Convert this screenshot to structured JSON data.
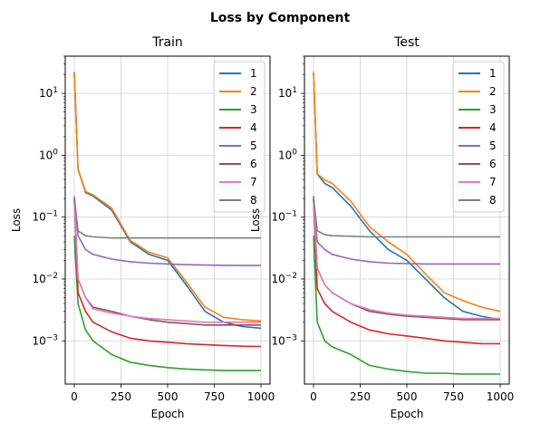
{
  "chart_data": {
    "type": "line",
    "title": "Loss by Component",
    "scale": "log",
    "grid": true,
    "legend_placement": "top-right",
    "colors": {
      "1": "#1f77b4",
      "2": "#ff7f0e",
      "3": "#2ca02c",
      "4": "#d62728",
      "5": "#9467bd",
      "6": "#8c564b",
      "7": "#e377c2",
      "8": "#7f7f7f"
    },
    "panels": [
      {
        "title": "Train",
        "xlabel": "Epoch",
        "ylabel": "Loss",
        "xlim": [
          0,
          1000
        ],
        "ylim": [
          0.0002,
          40
        ],
        "xticks": [
          "0",
          "250",
          "500",
          "750",
          "1000"
        ],
        "yticks": [
          "10-3",
          "10-2",
          "10-1",
          "100",
          "101"
        ],
        "x": [
          0,
          20,
          60,
          100,
          200,
          300,
          400,
          500,
          600,
          700,
          800,
          900,
          1000
        ],
        "series": [
          {
            "name": "1",
            "values": [
              22,
              0.6,
              0.25,
              0.22,
              0.13,
              0.04,
              0.025,
              0.02,
              0.008,
              0.003,
              0.002,
              0.0017,
              0.0016
            ]
          },
          {
            "name": "2",
            "values": [
              22,
              0.6,
              0.26,
              0.23,
              0.14,
              0.042,
              0.027,
              0.022,
              0.009,
              0.0035,
              0.0024,
              0.0022,
              0.0021
            ]
          },
          {
            "name": "3",
            "values": [
              0.05,
              0.004,
              0.0015,
              0.001,
              0.0006,
              0.00045,
              0.0004,
              0.00037,
              0.00035,
              0.00034,
              0.00033,
              0.00033,
              0.00033
            ]
          },
          {
            "name": "4",
            "values": [
              0.2,
              0.006,
              0.003,
              0.002,
              0.0014,
              0.0011,
              0.001,
              0.00095,
              0.0009,
              0.00087,
              0.00084,
              0.00082,
              0.00081
            ]
          },
          {
            "name": "5",
            "values": [
              0.22,
              0.05,
              0.03,
              0.025,
              0.021,
              0.019,
              0.018,
              0.0175,
              0.017,
              0.0168,
              0.0166,
              0.0165,
              0.0165
            ]
          },
          {
            "name": "6",
            "values": [
              0.2,
              0.01,
              0.005,
              0.0035,
              0.003,
              0.0025,
              0.0022,
              0.002,
              0.0019,
              0.0018,
              0.0018,
              0.0018,
              0.0018
            ]
          },
          {
            "name": "7",
            "values": [
              0.2,
              0.01,
              0.005,
              0.0033,
              0.0028,
              0.0025,
              0.0023,
              0.0022,
              0.0021,
              0.002,
              0.002,
              0.002,
              0.002
            ]
          },
          {
            "name": "8",
            "values": [
              0.2,
              0.06,
              0.05,
              0.048,
              0.046,
              0.046,
              0.046,
              0.046,
              0.046,
              0.046,
              0.046,
              0.046,
              0.046
            ]
          }
        ]
      },
      {
        "title": "Test",
        "xlabel": "Epoch",
        "ylabel": "Loss",
        "xlim": [
          0,
          1000
        ],
        "ylim": [
          0.0002,
          40
        ],
        "xticks": [
          "0",
          "250",
          "500",
          "750",
          "1000"
        ],
        "yticks": [
          "10-3",
          "10-2",
          "10-1",
          "100",
          "101"
        ],
        "x": [
          0,
          20,
          60,
          100,
          200,
          300,
          400,
          500,
          600,
          700,
          800,
          900,
          1000
        ],
        "series": [
          {
            "name": "1",
            "values": [
              22,
              0.5,
              0.35,
              0.3,
              0.15,
              0.06,
              0.03,
              0.02,
              0.01,
              0.005,
              0.003,
              0.0025,
              0.0022
            ]
          },
          {
            "name": "2",
            "values": [
              22,
              0.5,
              0.4,
              0.35,
              0.18,
              0.07,
              0.04,
              0.025,
              0.012,
              0.006,
              0.0045,
              0.0035,
              0.003
            ]
          },
          {
            "name": "3",
            "values": [
              0.05,
              0.002,
              0.001,
              0.0008,
              0.0006,
              0.0004,
              0.00035,
              0.00032,
              0.0003,
              0.0003,
              0.00029,
              0.00029,
              0.00029
            ]
          },
          {
            "name": "4",
            "values": [
              0.2,
              0.007,
              0.004,
              0.003,
              0.002,
              0.0015,
              0.0013,
              0.0012,
              0.0011,
              0.001,
              0.00095,
              0.0009,
              0.0009
            ]
          },
          {
            "name": "5",
            "values": [
              0.22,
              0.04,
              0.03,
              0.025,
              0.021,
              0.019,
              0.018,
              0.0178,
              0.0175,
              0.0175,
              0.0175,
              0.0175,
              0.0175
            ]
          },
          {
            "name": "6",
            "values": [
              0.2,
              0.015,
              0.008,
              0.006,
              0.004,
              0.003,
              0.0027,
              0.0025,
              0.0024,
              0.0023,
              0.0022,
              0.0022,
              0.0022
            ]
          },
          {
            "name": "7",
            "values": [
              0.2,
              0.015,
              0.008,
              0.006,
              0.004,
              0.0032,
              0.0028,
              0.0026,
              0.0025,
              0.0024,
              0.0023,
              0.0023,
              0.0023
            ]
          },
          {
            "name": "8",
            "values": [
              0.2,
              0.06,
              0.052,
              0.05,
              0.049,
              0.048,
              0.048,
              0.048,
              0.048,
              0.048,
              0.048,
              0.048,
              0.048
            ]
          }
        ]
      }
    ]
  }
}
